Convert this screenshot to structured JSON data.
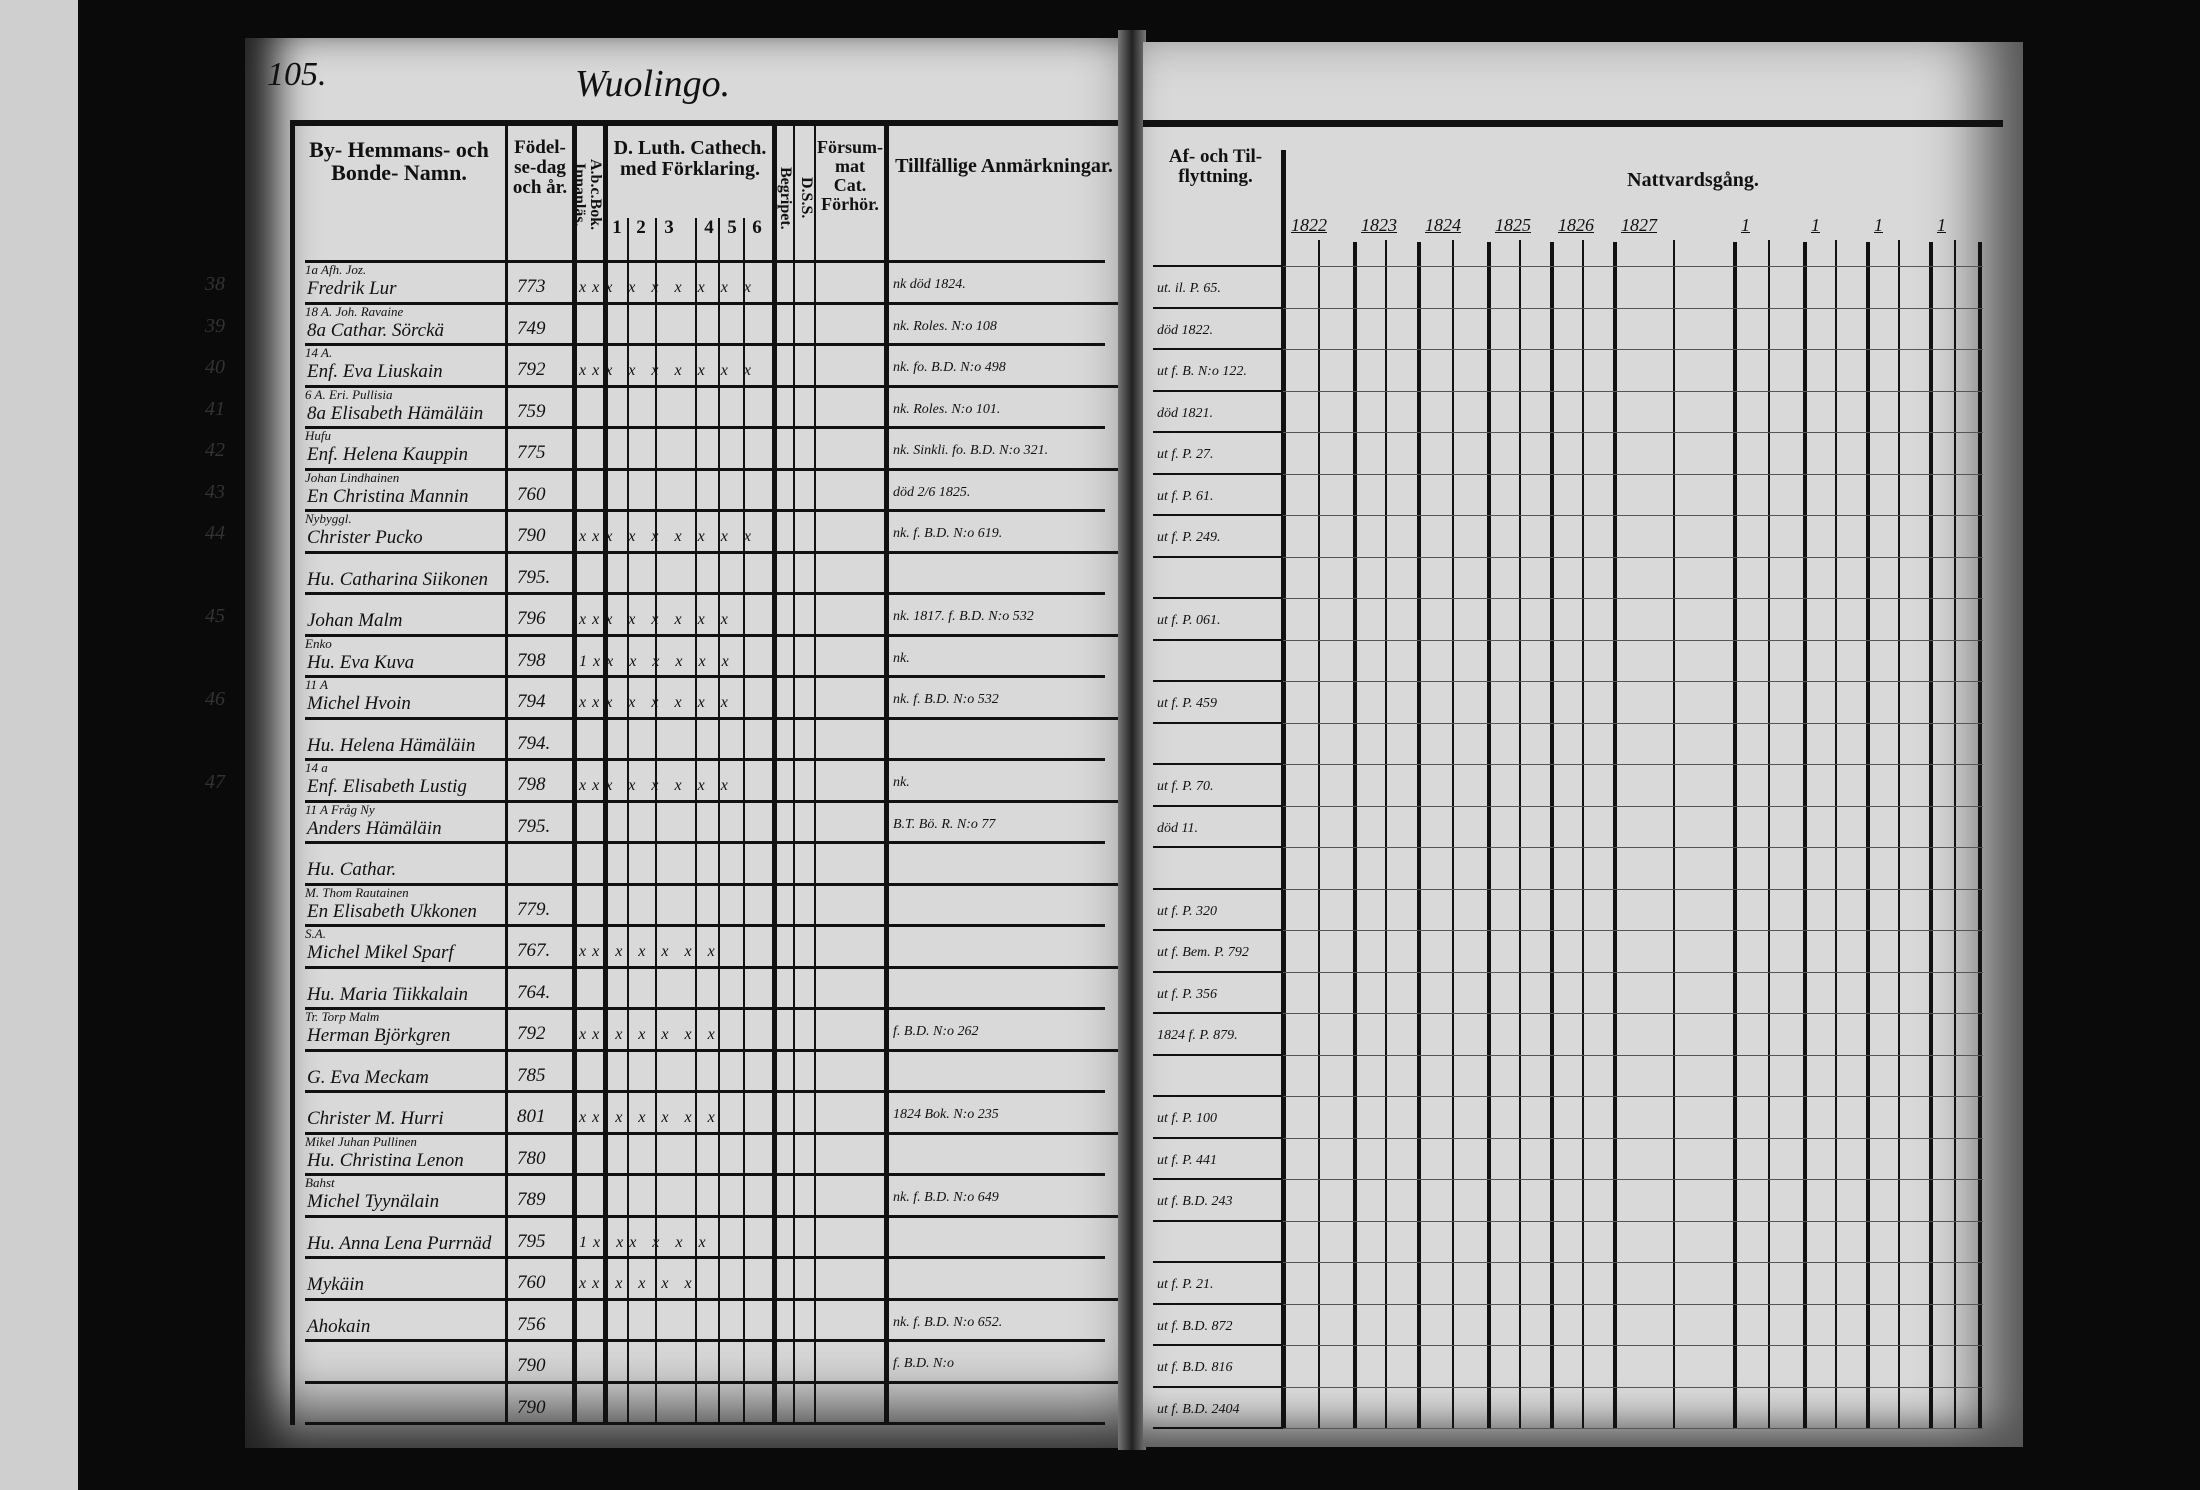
{
  "left_page": {
    "page_number": "105.",
    "parish_title": "Wuolingo.",
    "headers": {
      "name": "By- Hemmans- och Bonde- Namn.",
      "birth": "Födel- se-dag och år.",
      "abc": "A.b.c.Bok. Innanläs.",
      "catechism": "D. Luth. Cathech. med Förklaring.",
      "catechism_parts": [
        "1",
        "2",
        "3",
        "4",
        "5",
        "6"
      ],
      "begrip": "Begripet.",
      "dss": "D.S.S.",
      "forsummat": "Försum- mat Cat. Förhör.",
      "remarks": "Tillfällige Anmärkningar."
    }
  },
  "right_page": {
    "headers": {
      "moves": "Af- och Til- flyttning.",
      "communion": "Nattvardsgång.",
      "years": [
        "1822",
        "1823",
        "1824",
        "1825",
        "1826",
        "1827",
        "1",
        "1",
        "1",
        "1"
      ]
    }
  },
  "rows": [
    {
      "num": "38",
      "note": "1a   Afh. Joz.",
      "name": "Fredrik Lur",
      "year": "773",
      "marks": "xxx x x x x x x",
      "remark": "nk   död 1824.",
      "move": "ut. il. P. 65."
    },
    {
      "num": "39",
      "note": "18 A.   Joh. Ravaine",
      "name": "8a Cathar. Sörckä",
      "year": "749",
      "marks": "",
      "remark": "nk. Roles. N:o 108",
      "move": "död 1822."
    },
    {
      "num": "40",
      "note": "14 A.",
      "name": "Enf. Eva Liuskain",
      "year": "792",
      "marks": "xxx x x x x x x",
      "remark": "nk. fo. B.D. N:o 498",
      "move": "ut f. B. N:o 122."
    },
    {
      "num": "41",
      "note": "6 A.   Eri. Pullisia",
      "name": "8a Elisabeth Hämäläin",
      "year": "759",
      "marks": "",
      "remark": "nk. Roles. N:o 101.",
      "move": "död 1821."
    },
    {
      "num": "42",
      "note": "Hufu",
      "name": "Enf. Helena Kauppin",
      "year": "775",
      "marks": "",
      "remark": "nk. Sinkli. fo. B.D. N:o 321.",
      "move": "ut f. P. 27."
    },
    {
      "num": "43",
      "note": "Johan Lindhainen",
      "name": "En Christina Mannin",
      "year": "760",
      "marks": "",
      "remark": "död 2/6 1825.",
      "move": "ut f. P. 61."
    },
    {
      "num": "44",
      "note": "Nybyggl.",
      "name": "Christer Pucko",
      "year": "790",
      "marks": "xxx x x x x x x",
      "remark": "nk. f. B.D. N:o 619.",
      "move": "ut f. P. 249."
    },
    {
      "num": "",
      "note": "",
      "name": "Hu. Catharina Siikonen",
      "year": "795.",
      "marks": "",
      "remark": "",
      "move": ""
    },
    {
      "num": "45",
      "note": "",
      "name": "Johan Malm",
      "year": "796",
      "marks": "xxx x x x x x",
      "remark": "nk. 1817. f. B.D. N:o 532",
      "move": "ut f. P. 061."
    },
    {
      "num": "",
      "note": "Enko",
      "name": "Hu. Eva Kuva",
      "year": "798",
      "marks": "1xx x x x x x",
      "remark": "nk.",
      "move": ""
    },
    {
      "num": "46",
      "note": "11 A",
      "name": "Michel Hvoin",
      "year": "794",
      "marks": "xxx x x x x x",
      "remark": "nk. f. B.D. N:o 532",
      "move": "ut f. P. 459"
    },
    {
      "num": "",
      "note": "",
      "name": "Hu. Helena Hämäläin",
      "year": "794.",
      "marks": "",
      "remark": "",
      "move": ""
    },
    {
      "num": "47",
      "note": "14 a",
      "name": "Enf. Elisabeth Lustig",
      "year": "798",
      "marks": "xxx x x x x x",
      "remark": "nk.",
      "move": "ut f. P. 70."
    },
    {
      "num": "",
      "note": "11 A   Fråg Ny",
      "name": "Anders Hämäläin",
      "year": "795.",
      "marks": "",
      "remark": "B.T. Bö. R. N:o 77",
      "move": "död 11."
    },
    {
      "num": "",
      "note": "",
      "name": "Hu. Cathar.",
      "year": "",
      "marks": "",
      "remark": "",
      "move": ""
    },
    {
      "num": "",
      "note": "M. Thom Rautainen",
      "name": "En Elisabeth Ukkonen",
      "year": "779.",
      "marks": "",
      "remark": "",
      "move": "ut f. P. 320"
    },
    {
      "num": "",
      "note": "S.A.",
      "name": "Michel Mikel Sparf",
      "year": "767.",
      "marks": "xx x x x x x",
      "remark": "",
      "move": "ut f. Bem. P. 792"
    },
    {
      "num": "",
      "note": "",
      "name": "Hu. Maria Tiikkalain",
      "year": "764.",
      "marks": "",
      "remark": "",
      "move": "ut f. P. 356"
    },
    {
      "num": "",
      "note": "Tr. Torp Malm",
      "name": "Herman Björkgren",
      "year": "792",
      "marks": "xx x x x x x",
      "remark": "f. B.D. N:o 262",
      "move": "1824 f. P. 879."
    },
    {
      "num": "",
      "note": "",
      "name": "G. Eva Meckam",
      "year": "785",
      "marks": "",
      "remark": "",
      "move": ""
    },
    {
      "num": "",
      "note": "",
      "name": "Christer M. Hurri",
      "year": "801",
      "marks": "xx x x x x x",
      "remark": "1824 Bok. N:o 235",
      "move": "ut f. P. 100"
    },
    {
      "num": "",
      "note": "Mikel Juhan Pullinen",
      "name": "Hu. Christina Lenon",
      "year": "780",
      "marks": "",
      "remark": "",
      "move": "ut f. P. 441"
    },
    {
      "num": "",
      "note": "Bahst",
      "name": "Michel Tyynälain",
      "year": "789",
      "marks": "",
      "remark": "nk. f. B.D. N:o 649",
      "move": "ut f. B.D. 243"
    },
    {
      "num": "",
      "note": "",
      "name": "Hu. Anna Lena Purrnäd",
      "year": "795",
      "marks": "1x xx x x x",
      "remark": "",
      "move": ""
    },
    {
      "num": "",
      "note": "",
      "name": "Mykäin",
      "year": "760",
      "marks": "xx x x x x",
      "remark": "",
      "move": "ut f. P. 21."
    },
    {
      "num": "",
      "note": "",
      "name": "Ahokain",
      "year": "756",
      "marks": "",
      "remark": "nk. f. B.D. N:o 652.",
      "move": "ut f. B.D. 872"
    },
    {
      "num": "",
      "note": "",
      "name": "",
      "year": "790",
      "marks": "",
      "remark": "f. B.D. N:o",
      "move": "ut f. B.D. 816"
    },
    {
      "num": "",
      "note": "",
      "name": "",
      "year": "790",
      "marks": "",
      "remark": "",
      "move": "ut f. B.D. 2404"
    }
  ]
}
